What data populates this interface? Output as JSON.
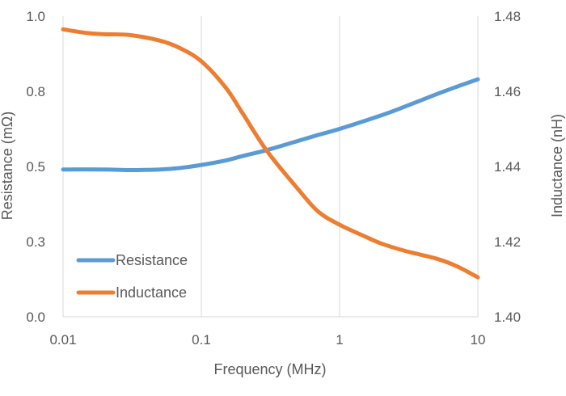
{
  "chart_data": {
    "type": "line",
    "title": "",
    "xlabel": "Frequency (MHz)",
    "ylabel": "Resistance (mΩ)",
    "y2label": "Inductance (nH)",
    "x_scale": "log",
    "xlim": [
      0.01,
      10
    ],
    "ylim": [
      0.0,
      1.0
    ],
    "y2lim": [
      1.4,
      1.48
    ],
    "x_ticks": [
      "0.01",
      "0.1",
      "1",
      "10"
    ],
    "y_ticks": [
      "0.0",
      "0.3",
      "0.5",
      "0.8",
      "1.0"
    ],
    "y2_ticks": [
      "1.40",
      "1.42",
      "1.44",
      "1.46",
      "1.48"
    ],
    "grid": "vertical",
    "legend_position": "lower-left",
    "series": [
      {
        "name": "Resistance",
        "axis": "left",
        "color": "#5b9bd5",
        "x": [
          0.01,
          0.02,
          0.03,
          0.05,
          0.07,
          0.1,
          0.15,
          0.2,
          0.3,
          0.5,
          0.7,
          1,
          2,
          3,
          5,
          7,
          10
        ],
        "y": [
          0.49,
          0.49,
          0.488,
          0.49,
          0.495,
          0.505,
          0.52,
          0.535,
          0.555,
          0.585,
          0.605,
          0.625,
          0.67,
          0.7,
          0.74,
          0.765,
          0.79
        ]
      },
      {
        "name": "Inductance",
        "axis": "right",
        "color": "#ed7d31",
        "x": [
          0.01,
          0.015,
          0.02,
          0.03,
          0.05,
          0.07,
          0.1,
          0.15,
          0.2,
          0.3,
          0.5,
          0.7,
          1,
          1.5,
          2,
          3,
          5,
          7,
          10
        ],
        "y": [
          1.4765,
          1.4755,
          1.4752,
          1.475,
          1.4735,
          1.4715,
          1.468,
          1.461,
          1.454,
          1.444,
          1.434,
          1.428,
          1.4245,
          1.4215,
          1.4195,
          1.4175,
          1.4155,
          1.4135,
          1.4105
        ]
      }
    ]
  }
}
